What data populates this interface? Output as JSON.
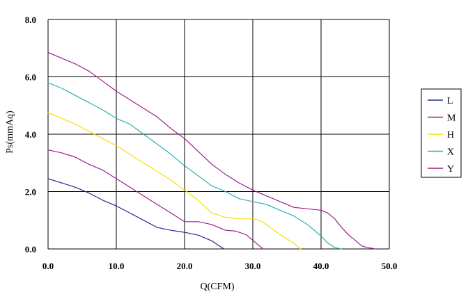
{
  "chart_data": {
    "type": "line",
    "title": "",
    "xlabel": "Q(CFM)",
    "ylabel": "Ps(mmAq)",
    "xlim": [
      0,
      50
    ],
    "ylim": [
      0,
      8
    ],
    "x_ticks": [
      "0.0",
      "10.0",
      "20.0",
      "30.0",
      "40.0",
      "50.0"
    ],
    "y_ticks": [
      "0.0",
      "2.0",
      "4.0",
      "6.0",
      "8.0"
    ],
    "grid": true,
    "legend_position": "right",
    "series": [
      {
        "name": "L",
        "color": "#1f2b8c",
        "points": [
          [
            0,
            2.45
          ],
          [
            2,
            2.3
          ],
          [
            4,
            2.15
          ],
          [
            6,
            1.95
          ],
          [
            8,
            1.7
          ],
          [
            10,
            1.5
          ],
          [
            12,
            1.25
          ],
          [
            14,
            1.0
          ],
          [
            16,
            0.75
          ],
          [
            18,
            0.65
          ],
          [
            20,
            0.58
          ],
          [
            22,
            0.48
          ],
          [
            24,
            0.28
          ],
          [
            25,
            0.12
          ],
          [
            25.8,
            0.0
          ]
        ]
      },
      {
        "name": "M",
        "color": "#9b1f8c",
        "points": [
          [
            0,
            3.45
          ],
          [
            2,
            3.35
          ],
          [
            4,
            3.2
          ],
          [
            6,
            2.95
          ],
          [
            8,
            2.75
          ],
          [
            10,
            2.45
          ],
          [
            12,
            2.15
          ],
          [
            14,
            1.85
          ],
          [
            16,
            1.55
          ],
          [
            18,
            1.25
          ],
          [
            20,
            0.95
          ],
          [
            22,
            0.95
          ],
          [
            24,
            0.85
          ],
          [
            26,
            0.65
          ],
          [
            27.5,
            0.62
          ],
          [
            29,
            0.5
          ],
          [
            30,
            0.3
          ],
          [
            31,
            0.1
          ],
          [
            31.5,
            0.0
          ]
        ]
      },
      {
        "name": "H",
        "color": "#f5e000",
        "points": [
          [
            0,
            4.75
          ],
          [
            2,
            4.55
          ],
          [
            4,
            4.35
          ],
          [
            6,
            4.1
          ],
          [
            8,
            3.85
          ],
          [
            10,
            3.6
          ],
          [
            12,
            3.3
          ],
          [
            14,
            3.0
          ],
          [
            16,
            2.7
          ],
          [
            18,
            2.4
          ],
          [
            20,
            2.05
          ],
          [
            22,
            1.7
          ],
          [
            24,
            1.25
          ],
          [
            26,
            1.1
          ],
          [
            28,
            1.05
          ],
          [
            30,
            1.05
          ],
          [
            31,
            1.0
          ],
          [
            32,
            0.85
          ],
          [
            34,
            0.5
          ],
          [
            36,
            0.2
          ],
          [
            37,
            0.0
          ]
        ]
      },
      {
        "name": "X",
        "color": "#2bb0b0",
        "points": [
          [
            0,
            5.8
          ],
          [
            2,
            5.6
          ],
          [
            4,
            5.35
          ],
          [
            6,
            5.1
          ],
          [
            8,
            4.85
          ],
          [
            10,
            4.55
          ],
          [
            12,
            4.35
          ],
          [
            14,
            4.0
          ],
          [
            16,
            3.65
          ],
          [
            18,
            3.3
          ],
          [
            20,
            2.9
          ],
          [
            22,
            2.55
          ],
          [
            24,
            2.2
          ],
          [
            26,
            2.0
          ],
          [
            28,
            1.75
          ],
          [
            30,
            1.65
          ],
          [
            32,
            1.55
          ],
          [
            34,
            1.35
          ],
          [
            36,
            1.15
          ],
          [
            38,
            0.85
          ],
          [
            40,
            0.45
          ],
          [
            41,
            0.2
          ],
          [
            42,
            0.05
          ],
          [
            43,
            0.0
          ]
        ]
      },
      {
        "name": "Y",
        "color": "#9b1f8c",
        "points": [
          [
            0,
            6.85
          ],
          [
            2,
            6.65
          ],
          [
            4,
            6.45
          ],
          [
            6,
            6.2
          ],
          [
            8,
            5.85
          ],
          [
            10,
            5.5
          ],
          [
            12,
            5.2
          ],
          [
            14,
            4.9
          ],
          [
            16,
            4.6
          ],
          [
            18,
            4.2
          ],
          [
            20,
            3.85
          ],
          [
            22,
            3.4
          ],
          [
            24,
            2.95
          ],
          [
            26,
            2.6
          ],
          [
            28,
            2.3
          ],
          [
            30,
            2.05
          ],
          [
            32,
            1.85
          ],
          [
            34,
            1.65
          ],
          [
            36,
            1.45
          ],
          [
            38,
            1.4
          ],
          [
            40,
            1.35
          ],
          [
            41,
            1.25
          ],
          [
            42,
            1.05
          ],
          [
            43,
            0.75
          ],
          [
            44,
            0.5
          ],
          [
            45,
            0.3
          ],
          [
            46,
            0.1
          ],
          [
            47,
            0.04
          ],
          [
            48,
            0.0
          ]
        ]
      }
    ]
  }
}
